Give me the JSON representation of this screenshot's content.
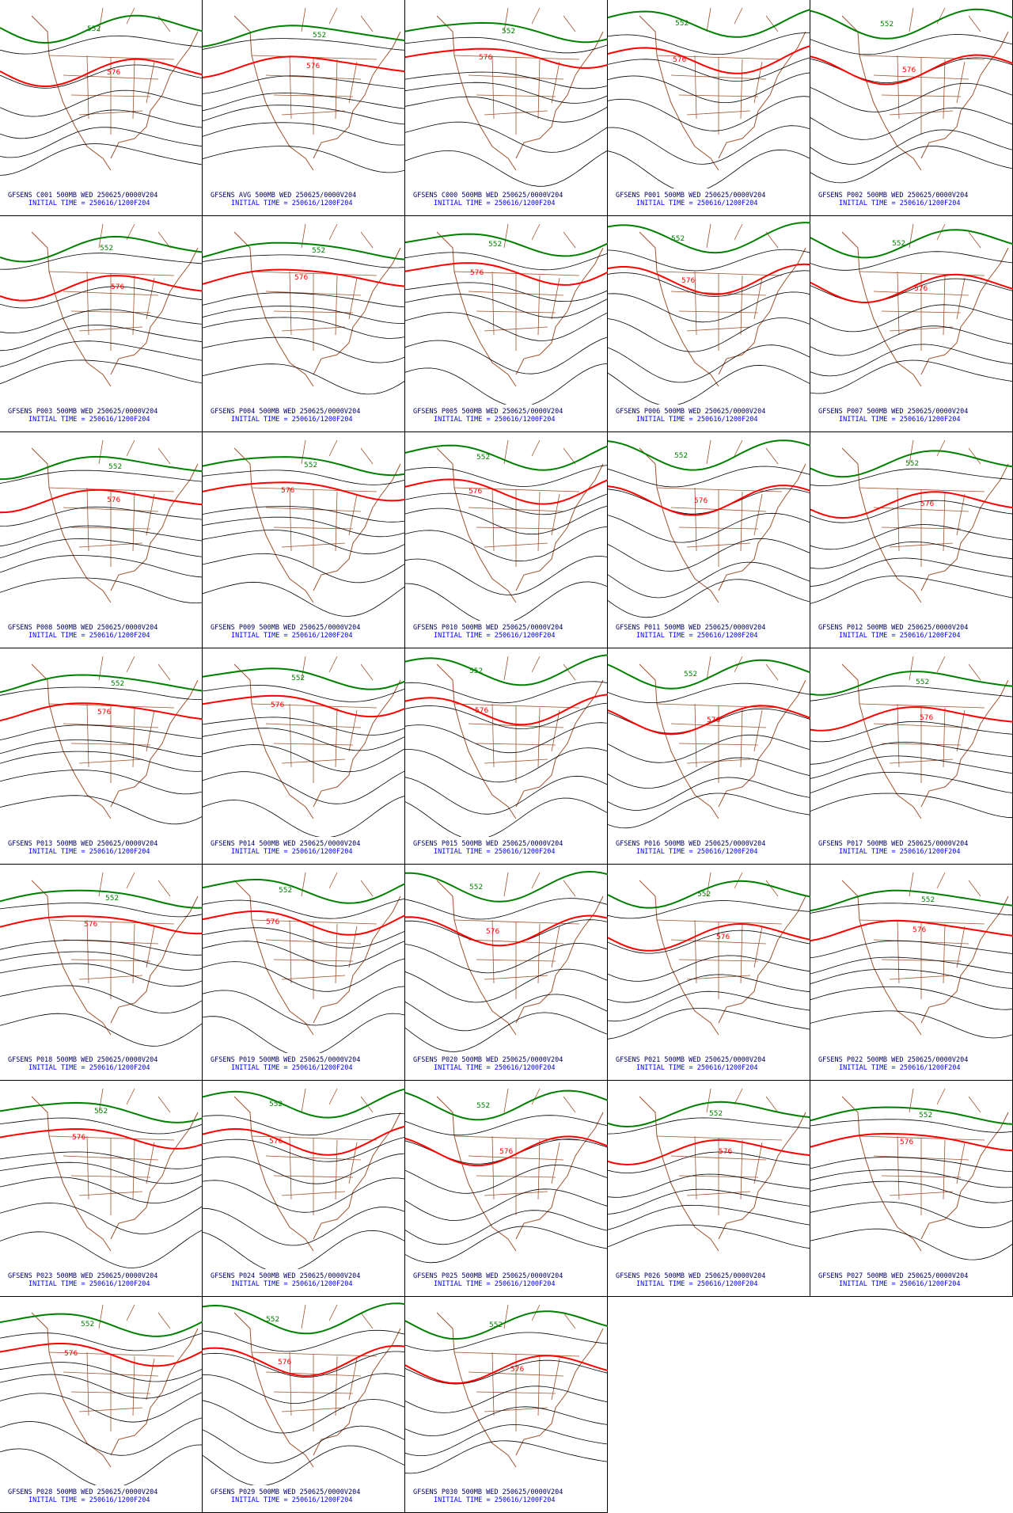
{
  "contours": [
    {
      "value": 552,
      "color": "#008000"
    },
    {
      "value": 576,
      "color": "#ff0000"
    }
  ],
  "panels": [
    {
      "label": "GFSENS C001 500MB WED 250625/0000V204",
      "time": "INITIAL TIME = 250616/1200F204"
    },
    {
      "label": "GFSENS AVG 500MB WED 250625/0000V204",
      "time": "INITIAL TIME = 250616/1200F204"
    },
    {
      "label": "GFSENS C000 500MB WED 250625/0000V204",
      "time": "INITIAL TIME = 250616/1200F204"
    },
    {
      "label": "GFSENS P001 500MB WED 250625/0000V204",
      "time": "INITIAL TIME = 250616/1200F204"
    },
    {
      "label": "GFSENS P002 500MB WED 250625/0000V204",
      "time": "INITIAL TIME = 250616/1200F204"
    },
    {
      "label": "GFSENS P003 500MB WED 250625/0000V204",
      "time": "INITIAL TIME = 250616/1200F204"
    },
    {
      "label": "GFSENS P004 500MB WED 250625/0000V204",
      "time": "INITIAL TIME = 250616/1200F204"
    },
    {
      "label": "GFSENS P005 500MB WED 250625/0000V204",
      "time": "INITIAL TIME = 250616/1200F204"
    },
    {
      "label": "GFSENS P006 500MB WED 250625/0000V204",
      "time": "INITIAL TIME = 250616/1200F204"
    },
    {
      "label": "GFSENS P007 500MB WED 250625/0000V204",
      "time": "INITIAL TIME = 250616/1200F204"
    },
    {
      "label": "GFSENS P008 500MB WED 250625/0000V204",
      "time": "INITIAL TIME = 250616/1200F204"
    },
    {
      "label": "GFSENS P009 500MB WED 250625/0000V204",
      "time": "INITIAL TIME = 250616/1200F204"
    },
    {
      "label": "GFSENS P010 500MB WED 250625/0000V204",
      "time": "INITIAL TIME = 250616/1200F204"
    },
    {
      "label": "GFSENS P011 500MB WED 250625/0000V204",
      "time": "INITIAL TIME = 250616/1200F204"
    },
    {
      "label": "GFSENS P012 500MB WED 250625/0000V204",
      "time": "INITIAL TIME = 250616/1200F204"
    },
    {
      "label": "GFSENS P013 500MB WED 250625/0000V204",
      "time": "INITIAL TIME = 250616/1200F204"
    },
    {
      "label": "GFSENS P014 500MB WED 250625/0000V204",
      "time": "INITIAL TIME = 250616/1200F204"
    },
    {
      "label": "GFSENS P015 500MB WED 250625/0000V204",
      "time": "INITIAL TIME = 250616/1200F204"
    },
    {
      "label": "GFSENS P016 500MB WED 250625/0000V204",
      "time": "INITIAL TIME = 250616/1200F204"
    },
    {
      "label": "GFSENS P017 500MB WED 250625/0000V204",
      "time": "INITIAL TIME = 250616/1200F204"
    },
    {
      "label": "GFSENS P018 500MB WED 250625/0000V204",
      "time": "INITIAL TIME = 250616/1200F204"
    },
    {
      "label": "GFSENS P019 500MB WED 250625/0000V204",
      "time": "INITIAL TIME = 250616/1200F204"
    },
    {
      "label": "GFSENS P020 500MB WED 250625/0000V204",
      "time": "INITIAL TIME = 250616/1200F204"
    },
    {
      "label": "GFSENS P021 500MB WED 250625/0000V204",
      "time": "INITIAL TIME = 250616/1200F204"
    },
    {
      "label": "GFSENS P022 500MB WED 250625/0000V204",
      "time": "INITIAL TIME = 250616/1200F204"
    },
    {
      "label": "GFSENS P023 500MB WED 250625/0000V204",
      "time": "INITIAL TIME = 250616/1200F204"
    },
    {
      "label": "GFSENS P024 500MB WED 250625/0000V204",
      "time": "INITIAL TIME = 250616/1200F204"
    },
    {
      "label": "GFSENS P025 500MB WED 250625/0000V204",
      "time": "INITIAL TIME = 250616/1200F204"
    },
    {
      "label": "GFSENS P026 500MB WED 250625/0000V204",
      "time": "INITIAL TIME = 250616/1200F204"
    },
    {
      "label": "GFSENS P027 500MB WED 250625/0000V204",
      "time": "INITIAL TIME = 250616/1200F204"
    },
    {
      "label": "GFSENS P028 500MB WED 250625/0000V204",
      "time": "INITIAL TIME = 250616/1200F204"
    },
    {
      "label": "GFSENS P029 500MB WED 250625/0000V204",
      "time": "INITIAL TIME = 250616/1200F204"
    },
    {
      "label": "GFSENS P030 500MB WED 250625/0000V204",
      "time": "INITIAL TIME = 250616/1200F204"
    }
  ]
}
